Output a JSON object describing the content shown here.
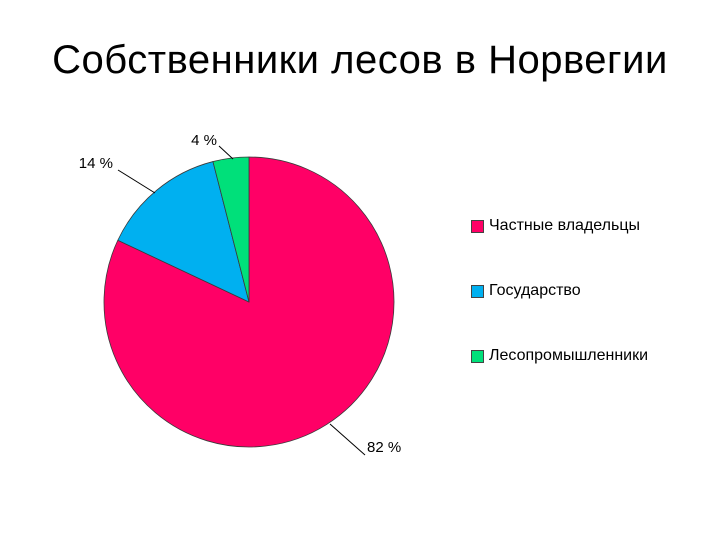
{
  "chart_data": {
    "type": "pie",
    "title": "Собственники лесов в Норвегии",
    "categories": [
      "Частные владельцы",
      "Государство",
      "Лесопромышленники"
    ],
    "values": [
      82,
      14,
      4
    ],
    "data_labels": [
      "82 %",
      "14 %",
      "4 %"
    ],
    "colors": [
      "#FF0066",
      "#00B0F0",
      "#00E07A"
    ],
    "start_angle_deg": 0,
    "direction": "clockwise",
    "legend_position": "right"
  }
}
